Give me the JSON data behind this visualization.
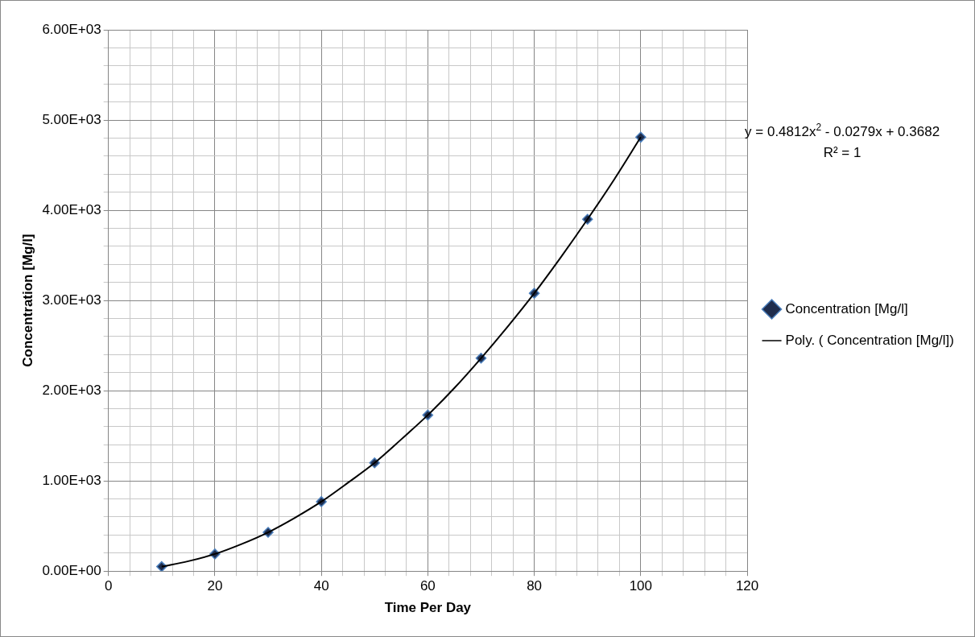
{
  "chart_data": {
    "type": "scatter",
    "xlabel": "Time Per Day",
    "ylabel": "Concentration [Mg/l]",
    "xlim": [
      0,
      120
    ],
    "ylim": [
      0,
      6000
    ],
    "xticks": [
      0,
      {
        "value": 4,
        "label": null
      },
      {
        "value": 8,
        "label": null
      },
      {
        "value": 12,
        "label": null
      },
      {
        "value": 16,
        "label": null
      },
      20,
      {
        "value": 24,
        "label": null
      },
      {
        "value": 28,
        "label": null
      },
      {
        "value": 32,
        "label": null
      },
      {
        "value": 36,
        "label": null
      },
      40,
      {
        "value": 44,
        "label": null
      },
      {
        "value": 48,
        "label": null
      },
      {
        "value": 52,
        "label": null
      },
      {
        "value": 56,
        "label": null
      },
      60,
      {
        "value": 64,
        "label": null
      },
      {
        "value": 68,
        "label": null
      },
      {
        "value": 72,
        "label": null
      },
      {
        "value": 76,
        "label": null
      },
      80,
      {
        "value": 84,
        "label": null
      },
      {
        "value": 88,
        "label": null
      },
      {
        "value": 92,
        "label": null
      },
      {
        "value": 96,
        "label": null
      },
      100,
      {
        "value": 104,
        "label": null
      },
      {
        "value": 108,
        "label": null
      },
      {
        "value": 112,
        "label": null
      },
      {
        "value": 116,
        "label": null
      },
      120
    ],
    "yticks": [
      {
        "value": 0,
        "label": "0.00E+00"
      },
      {
        "value": 200,
        "label": null
      },
      {
        "value": 400,
        "label": null
      },
      {
        "value": 600,
        "label": null
      },
      {
        "value": 800,
        "label": null
      },
      {
        "value": 1000,
        "label": "1.00E+03"
      },
      {
        "value": 1200,
        "label": null
      },
      {
        "value": 1400,
        "label": null
      },
      {
        "value": 1600,
        "label": null
      },
      {
        "value": 1800,
        "label": null
      },
      {
        "value": 2000,
        "label": "2.00E+03"
      },
      {
        "value": 2200,
        "label": null
      },
      {
        "value": 2400,
        "label": null
      },
      {
        "value": 2600,
        "label": null
      },
      {
        "value": 2800,
        "label": null
      },
      {
        "value": 3000,
        "label": "3.00E+03"
      },
      {
        "value": 3200,
        "label": null
      },
      {
        "value": 3400,
        "label": null
      },
      {
        "value": 3600,
        "label": null
      },
      {
        "value": 3800,
        "label": null
      },
      {
        "value": 4000,
        "label": "4.00E+03"
      },
      {
        "value": 4200,
        "label": null
      },
      {
        "value": 4400,
        "label": null
      },
      {
        "value": 4600,
        "label": null
      },
      {
        "value": 4800,
        "label": null
      },
      {
        "value": 5000,
        "label": "5.00E+03"
      },
      {
        "value": 5200,
        "label": null
      },
      {
        "value": 5400,
        "label": null
      },
      {
        "value": 5600,
        "label": null
      },
      {
        "value": 5800,
        "label": null
      },
      {
        "value": 6000,
        "label": "6.00E+03"
      }
    ],
    "grid": true,
    "legend": "right",
    "marker": "diamond",
    "line_style": "solid",
    "x": [
      10,
      20,
      30,
      40,
      50,
      60,
      70,
      80,
      90,
      100
    ],
    "series": [
      {
        "name": "Concentration [Mg/l]",
        "color": "#4a7ebb",
        "values": [
          50,
          190,
          430,
          770,
          1200,
          1730,
          2360,
          3080,
          3900,
          4810
        ]
      },
      {
        "name": "Poly. ( Concentration [Mg/l])",
        "type": "line",
        "marker": "none",
        "color": "#000000",
        "x": [
          10,
          15,
          20,
          25,
          30,
          35,
          40,
          45,
          50,
          55,
          60,
          65,
          70,
          75,
          80,
          85,
          90,
          95,
          100
        ],
        "values": [
          50,
          110,
          190,
          300,
          430,
          590,
          770,
          980,
          1200,
          1460,
          1730,
          2030,
          2360,
          2710,
          3080,
          3480,
          3900,
          4340,
          4810
        ]
      }
    ],
    "annotations": [
      "y = 0.4812x$^{2}$ - 0.0279x + 0.3682",
      "R² = 1"
    ]
  }
}
